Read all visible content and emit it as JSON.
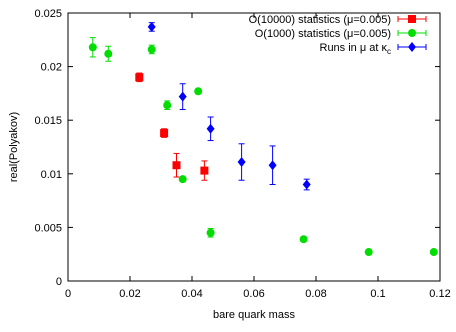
{
  "chart_data": {
    "type": "scatter",
    "title": "",
    "xlabel": "bare quark mass",
    "ylabel": "real(Polyakov)",
    "xlim": [
      0,
      0.12
    ],
    "ylim": [
      0,
      0.025
    ],
    "xticks": [
      0,
      0.02,
      0.04,
      0.06,
      0.08,
      0.1,
      0.12
    ],
    "xtick_labels": [
      "0",
      "0.02",
      "0.04",
      "0.06",
      "0.08",
      "0.1",
      "0.12"
    ],
    "yticks": [
      0,
      0.005,
      0.01,
      0.015,
      0.02,
      0.025
    ],
    "ytick_labels": [
      "0",
      "0.005",
      "0.01",
      "0.015",
      "0.02",
      "0.025"
    ],
    "grid": false,
    "legend_position": "top-right",
    "series": [
      {
        "name": "O(10000) statistics (μ=0.005)",
        "label_main": "O(10000) statistics (",
        "label_mu": "μ",
        "label_tail": "=0.005)",
        "color": "#ff0000",
        "marker": "square",
        "points": [
          {
            "x": 0.023,
            "y": 0.019,
            "err": 0.0004
          },
          {
            "x": 0.031,
            "y": 0.0138,
            "err": 0.0004
          },
          {
            "x": 0.035,
            "y": 0.0108,
            "err": 0.0011
          },
          {
            "x": 0.044,
            "y": 0.0103,
            "err": 0.0009
          }
        ]
      },
      {
        "name": "O(1000) statistics (μ=0.005)",
        "label_main": "O(1000) statistics (",
        "label_mu": "μ",
        "label_tail": "=0.005)",
        "color": "#00dd00",
        "marker": "circle",
        "points": [
          {
            "x": 0.008,
            "y": 0.0218,
            "err": 0.0009
          },
          {
            "x": 0.013,
            "y": 0.0212,
            "err": 0.0007
          },
          {
            "x": 0.027,
            "y": 0.0216,
            "err": 0.0004
          },
          {
            "x": 0.032,
            "y": 0.0164,
            "err": 0.0004
          },
          {
            "x": 0.037,
            "y": 0.0095,
            "err": 0.0002
          },
          {
            "x": 0.042,
            "y": 0.0177,
            "err": 0.0001
          },
          {
            "x": 0.046,
            "y": 0.0045,
            "err": 0.0004
          },
          {
            "x": 0.076,
            "y": 0.0039,
            "err": 0.0001
          },
          {
            "x": 0.097,
            "y": 0.0027,
            "err": 0.0001
          },
          {
            "x": 0.118,
            "y": 0.0027,
            "err": 0.0001
          }
        ]
      },
      {
        "name": "Runs in μ at κc",
        "label_main": "Runs in ",
        "label_mu": "μ",
        "label_mid": " at ",
        "label_kappa": "κ",
        "label_sub": "c",
        "color": "#0000ff",
        "marker": "diamond",
        "points": [
          {
            "x": 0.027,
            "y": 0.0237,
            "err": 0.0004
          },
          {
            "x": 0.037,
            "y": 0.0172,
            "err": 0.0012
          },
          {
            "x": 0.046,
            "y": 0.0142,
            "err": 0.0011
          },
          {
            "x": 0.056,
            "y": 0.0111,
            "err": 0.0017
          },
          {
            "x": 0.066,
            "y": 0.0108,
            "err": 0.0018
          },
          {
            "x": 0.077,
            "y": 0.009,
            "err": 0.0005
          }
        ]
      }
    ]
  }
}
